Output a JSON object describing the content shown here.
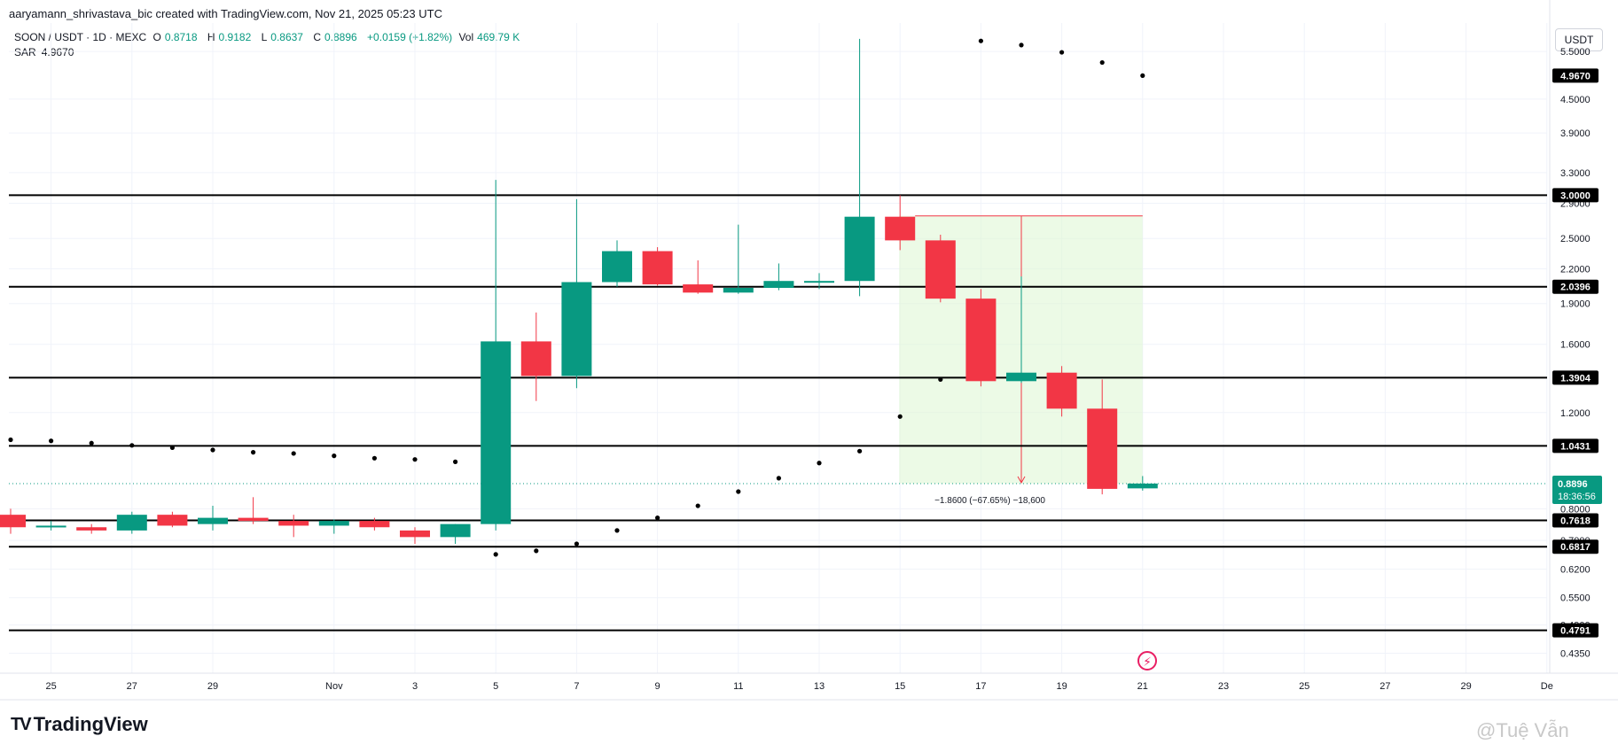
{
  "header": {
    "attribution": "aaryamann_shrivastava_bic created with TradingView.com, Nov 21, 2025 05:23 UTC",
    "symbol": "SOON / USDT · 1D · MEXC",
    "o_label": "O",
    "o_value": "0.8718",
    "h_label": "H",
    "h_value": "0.9182",
    "l_label": "L",
    "l_value": "0.8637",
    "c_label": "C",
    "c_value": "0.8896",
    "change": "+0.0159 (+1.82%)",
    "vol_label": "Vol",
    "vol_value": "469.79 K",
    "sar_label": "SAR",
    "sar_value": "4.9670",
    "currency": "USDT"
  },
  "footer": {
    "logo_mark": "TV",
    "logo_text": "TradingView",
    "watermark": "@Tuệ Vẫn",
    "alert_icon": "lightning-alert-icon"
  },
  "chart_data": {
    "type": "candlestick",
    "y_scale": "log",
    "ylim": [
      0.4,
      6.2
    ],
    "y_ticks": [
      "5.5000",
      "4.5000",
      "3.9000",
      "3.3000",
      "2.9000",
      "2.5000",
      "2.2000",
      "1.9000",
      "1.6000",
      "1.2000",
      "0.8000",
      "0.7000",
      "0.6200",
      "0.5500",
      "0.4900",
      "0.4350"
    ],
    "x_ticks": [
      {
        "day": 25,
        "label": "25"
      },
      {
        "day": 27,
        "label": "27"
      },
      {
        "day": 29,
        "label": "29"
      },
      {
        "day": 32,
        "label": "Nov"
      },
      {
        "day": 34,
        "label": "3"
      },
      {
        "day": 36,
        "label": "5"
      },
      {
        "day": 38,
        "label": "7"
      },
      {
        "day": 40,
        "label": "9"
      },
      {
        "day": 42,
        "label": "11"
      },
      {
        "day": 44,
        "label": "13"
      },
      {
        "day": 46,
        "label": "15"
      },
      {
        "day": 48,
        "label": "17"
      },
      {
        "day": 50,
        "label": "19"
      },
      {
        "day": 52,
        "label": "21"
      },
      {
        "day": 54,
        "label": "23"
      },
      {
        "day": 56,
        "label": "25"
      },
      {
        "day": 58,
        "label": "27"
      },
      {
        "day": 60,
        "label": "29"
      },
      {
        "day": 62,
        "label": "De"
      }
    ],
    "candles": [
      {
        "day": 24,
        "o": 0.78,
        "h": 0.8,
        "l": 0.72,
        "c": 0.74
      },
      {
        "day": 25,
        "o": 0.74,
        "h": 0.76,
        "l": 0.73,
        "c": 0.745
      },
      {
        "day": 26,
        "o": 0.74,
        "h": 0.75,
        "l": 0.72,
        "c": 0.73
      },
      {
        "day": 27,
        "o": 0.73,
        "h": 0.79,
        "l": 0.72,
        "c": 0.78
      },
      {
        "day": 28,
        "o": 0.78,
        "h": 0.79,
        "l": 0.74,
        "c": 0.745
      },
      {
        "day": 29,
        "o": 0.75,
        "h": 0.81,
        "l": 0.73,
        "c": 0.77
      },
      {
        "day": 30,
        "o": 0.77,
        "h": 0.84,
        "l": 0.75,
        "c": 0.76
      },
      {
        "day": 31,
        "o": 0.76,
        "h": 0.78,
        "l": 0.71,
        "c": 0.745
      },
      {
        "day": 32,
        "o": 0.745,
        "h": 0.765,
        "l": 0.72,
        "c": 0.76
      },
      {
        "day": 33,
        "o": 0.76,
        "h": 0.77,
        "l": 0.73,
        "c": 0.74
      },
      {
        "day": 34,
        "o": 0.73,
        "h": 0.74,
        "l": 0.69,
        "c": 0.71
      },
      {
        "day": 35,
        "o": 0.71,
        "h": 0.75,
        "l": 0.69,
        "c": 0.75
      },
      {
        "day": 36,
        "o": 0.75,
        "h": 3.2,
        "l": 0.73,
        "c": 1.62
      },
      {
        "day": 37,
        "o": 1.62,
        "h": 1.83,
        "l": 1.26,
        "c": 1.4
      },
      {
        "day": 38,
        "o": 1.4,
        "h": 2.95,
        "l": 1.33,
        "c": 2.08
      },
      {
        "day": 39,
        "o": 2.08,
        "h": 2.48,
        "l": 2.04,
        "c": 2.37
      },
      {
        "day": 40,
        "o": 2.37,
        "h": 2.41,
        "l": 2.05,
        "c": 2.06
      },
      {
        "day": 41,
        "o": 2.06,
        "h": 2.28,
        "l": 1.98,
        "c": 1.99
      },
      {
        "day": 42,
        "o": 1.99,
        "h": 2.65,
        "l": 1.98,
        "c": 2.03
      },
      {
        "day": 43,
        "o": 2.03,
        "h": 2.25,
        "l": 2.01,
        "c": 2.09
      },
      {
        "day": 44,
        "o": 2.08,
        "h": 2.16,
        "l": 2.02,
        "c": 2.09
      },
      {
        "day": 45,
        "o": 2.09,
        "h": 5.8,
        "l": 1.96,
        "c": 2.74
      },
      {
        "day": 46,
        "o": 2.74,
        "h": 3.0,
        "l": 2.38,
        "c": 2.48
      },
      {
        "day": 47,
        "o": 2.48,
        "h": 2.54,
        "l": 1.91,
        "c": 1.94
      },
      {
        "day": 48,
        "o": 1.94,
        "h": 2.02,
        "l": 1.34,
        "c": 1.37
      },
      {
        "day": 49,
        "o": 1.37,
        "h": 2.13,
        "l": 1.36,
        "c": 1.42
      },
      {
        "day": 50,
        "o": 1.42,
        "h": 1.46,
        "l": 1.18,
        "c": 1.22
      },
      {
        "day": 51,
        "o": 1.22,
        "h": 1.38,
        "l": 0.85,
        "c": 0.87
      },
      {
        "day": 52,
        "o": 0.8718,
        "h": 0.9182,
        "l": 0.8637,
        "c": 0.8896
      }
    ],
    "sar": [
      {
        "day": 24,
        "v": 1.07
      },
      {
        "day": 25,
        "v": 1.065
      },
      {
        "day": 26,
        "v": 1.055
      },
      {
        "day": 27,
        "v": 1.045
      },
      {
        "day": 28,
        "v": 1.035
      },
      {
        "day": 29,
        "v": 1.025
      },
      {
        "day": 30,
        "v": 1.015
      },
      {
        "day": 31,
        "v": 1.01
      },
      {
        "day": 32,
        "v": 1.0
      },
      {
        "day": 33,
        "v": 0.99
      },
      {
        "day": 34,
        "v": 0.985
      },
      {
        "day": 35,
        "v": 0.975
      },
      {
        "day": 36,
        "v": 0.66
      },
      {
        "day": 37,
        "v": 0.67
      },
      {
        "day": 38,
        "v": 0.69
      },
      {
        "day": 39,
        "v": 0.73
      },
      {
        "day": 40,
        "v": 0.77
      },
      {
        "day": 41,
        "v": 0.81
      },
      {
        "day": 42,
        "v": 0.86
      },
      {
        "day": 43,
        "v": 0.91
      },
      {
        "day": 44,
        "v": 0.97
      },
      {
        "day": 45,
        "v": 1.02
      },
      {
        "day": 46,
        "v": 1.18
      },
      {
        "day": 47,
        "v": 1.38
      },
      {
        "day": 48,
        "v": 5.75
      },
      {
        "day": 49,
        "v": 5.65
      },
      {
        "day": 50,
        "v": 5.48
      },
      {
        "day": 51,
        "v": 5.25
      },
      {
        "day": 52,
        "v": 4.967
      }
    ],
    "levels": [
      {
        "value": 3.0,
        "label": "3.0000"
      },
      {
        "value": 2.0396,
        "label": "2.0396"
      },
      {
        "value": 1.3904,
        "label": "1.3904"
      },
      {
        "value": 1.0431,
        "label": "1.0431"
      },
      {
        "value": 0.7618,
        "label": "0.7618"
      },
      {
        "value": 0.6817,
        "label": "0.6817"
      },
      {
        "value": 0.4791,
        "label": "0.4791"
      }
    ],
    "last_price": {
      "value": 0.8896,
      "label": "0.8896",
      "countdown": "18:36:56"
    },
    "sar_badge": {
      "value": 4.967,
      "label": "4.9670"
    },
    "measure": {
      "from_day": 46,
      "to_day": 52,
      "top": 2.75,
      "bottom": 0.8896,
      "arrow_day": 49,
      "label": "−1.8600 (−67.65%) −18,600"
    },
    "colors": {
      "up": "#089981",
      "down": "#f23645",
      "sar": "#000000",
      "level": "#000000",
      "measure_fill": "#dff7d5",
      "measure_line": "#f23645"
    }
  }
}
